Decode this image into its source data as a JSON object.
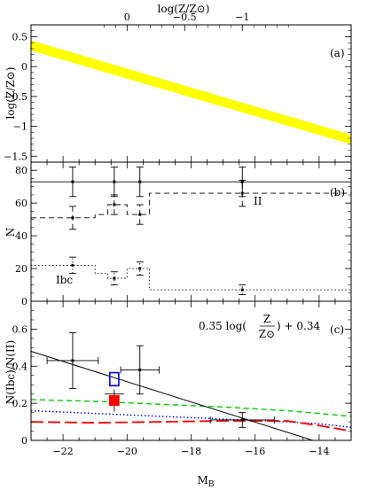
{
  "chart_data": [
    {
      "panel_label": "(a)",
      "type": "area",
      "top_axis_label": "log(Z/Z⊙)",
      "top_axis_ticks": [
        "0",
        "−0.5",
        "−1"
      ],
      "top_axis_tick_values": [
        0,
        -0.5,
        -1
      ],
      "ylabel": "log(Z/Z⊙)",
      "ylim": [
        -1.6,
        0.7
      ],
      "yticks": [
        "0.5",
        "0",
        "−0.5",
        "−1",
        "−1.5"
      ],
      "ytick_values": [
        0.5,
        0,
        -0.5,
        -1,
        -1.5
      ],
      "band": {
        "color": "#ffff00",
        "x": [
          -23,
          -13
        ],
        "lower": [
          0.27,
          -1.3
        ],
        "upper": [
          0.44,
          -1.14
        ]
      }
    },
    {
      "panel_label": "(b)",
      "type": "scatter",
      "ylabel": "N",
      "ylim": [
        0,
        85
      ],
      "yticks": [
        "80",
        "60",
        "40",
        "20",
        "0"
      ],
      "ytick_values": [
        80,
        60,
        40,
        20,
        0
      ],
      "series": [
        {
          "name": "",
          "style": "solid",
          "step_x": [
            -23,
            -13
          ],
          "step_y": [
            73,
            73
          ],
          "points": [
            {
              "x": -21.7,
              "y": 73,
              "yerr": 9
            },
            {
              "x": -20.4,
              "y": 73,
              "yerr": 9
            },
            {
              "x": -19.6,
              "y": 73,
              "yerr": 9
            },
            {
              "x": -16.4,
              "y": 73,
              "yerr": 9
            }
          ]
        },
        {
          "name": "II",
          "style": "dashed",
          "step_x": [
            -23,
            -21,
            -21,
            -20.6,
            -20.6,
            -20.0,
            -20.0,
            -19.3,
            -19.3,
            -13
          ],
          "step_y": [
            51,
            51,
            53,
            53,
            59,
            59,
            53,
            53,
            66,
            66
          ],
          "points": [
            {
              "x": -21.7,
              "y": 51,
              "yerr": 7
            },
            {
              "x": -20.4,
              "y": 59,
              "yerr": 6
            },
            {
              "x": -19.6,
              "y": 53,
              "yerr": 6
            },
            {
              "x": -16.4,
              "y": 66,
              "yerr": 8
            }
          ]
        },
        {
          "name": "Ibc",
          "style": "dotted",
          "step_x": [
            -23,
            -21,
            -21,
            -20.6,
            -20.6,
            -20.0,
            -20.0,
            -19.3,
            -19.3,
            -13
          ],
          "step_y": [
            22,
            22,
            17,
            17,
            14,
            14,
            20,
            20,
            7,
            7
          ],
          "points": [
            {
              "x": -21.7,
              "y": 22,
              "yerr": 5
            },
            {
              "x": -20.4,
              "y": 14,
              "yerr": 4
            },
            {
              "x": -19.6,
              "y": 20,
              "yerr": 4
            },
            {
              "x": -16.4,
              "y": 7,
              "yerr": 3
            }
          ]
        }
      ]
    },
    {
      "panel_label": "(c)",
      "type": "scatter",
      "ylabel": "N(Ibc)/N(II)",
      "xlabel": "M_B",
      "xlim": [
        -23,
        -13
      ],
      "xticks": [
        "−22",
        "−20",
        "−18",
        "−16",
        "−14"
      ],
      "xtick_values": [
        -22,
        -20,
        -18,
        -16,
        -14
      ],
      "ylim": [
        0,
        0.75
      ],
      "yticks": [
        "0.6",
        "0.4",
        "0.2",
        "0"
      ],
      "ytick_values": [
        0.6,
        0.4,
        0.2,
        0
      ],
      "annotation": {
        "prefix": "0.35 log(",
        "numerator": "Z",
        "denominator": "Z⊙",
        "suffix": ") + 0.34"
      },
      "fit_line": {
        "x": [
          -23,
          -14.2
        ],
        "y": [
          0.48,
          0.0
        ]
      },
      "points": [
        {
          "x": -21.7,
          "y": 0.43,
          "xerr": 0.8,
          "yerr": 0.15
        },
        {
          "x": -19.6,
          "y": 0.38,
          "xerr": 0.6,
          "yerr": 0.13
        },
        {
          "x": -16.4,
          "y": 0.11,
          "xerr": 1.0,
          "yerr": 0.04
        }
      ],
      "boxes": [
        {
          "color": "#0000ff",
          "filled": false,
          "x": -20.4,
          "y": 0.33,
          "w": 0.28,
          "h": 0.07
        },
        {
          "color": "#ff0000",
          "filled": true,
          "x": -20.4,
          "y": 0.215,
          "w": 0.28,
          "h": 0.05,
          "xerr": 0.3,
          "yerr": 0.06
        }
      ],
      "curves": [
        {
          "style": "dashed",
          "color": "#00cc00",
          "x": [
            -23,
            -21,
            -19,
            -17,
            -15,
            -13
          ],
          "y": [
            0.22,
            0.21,
            0.195,
            0.18,
            0.16,
            0.13
          ]
        },
        {
          "style": "dotted",
          "color": "#0000cc",
          "x": [
            -23,
            -21,
            -19,
            -17,
            -15,
            -14,
            -13
          ],
          "y": [
            0.16,
            0.145,
            0.13,
            0.115,
            0.1,
            0.09,
            0.07
          ]
        },
        {
          "style": "longdash",
          "color": "#ff0000",
          "x": [
            -23,
            -21,
            -19,
            -17,
            -15,
            -14,
            -13
          ],
          "y": [
            0.1,
            0.095,
            0.1,
            0.105,
            0.105,
            0.08,
            0.05
          ]
        }
      ]
    }
  ]
}
